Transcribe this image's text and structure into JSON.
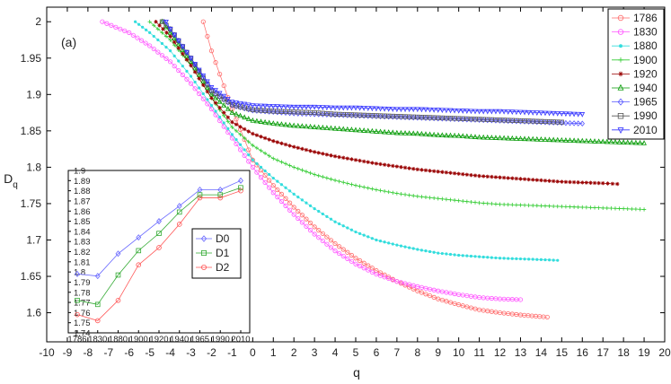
{
  "chart_data": [
    {
      "type": "line",
      "panel_label": "(a)",
      "xlabel": "q",
      "ylabel": "D",
      "ylabel_subscript": "q",
      "xlim": [
        -10,
        20
      ],
      "ylim": [
        1.56,
        2.02
      ],
      "x_ticks": [
        -10,
        -9,
        -8,
        -7,
        -6,
        -5,
        -4,
        -3,
        -2,
        -1,
        0,
        1,
        2,
        3,
        4,
        5,
        6,
        7,
        8,
        9,
        10,
        11,
        12,
        13,
        14,
        15,
        16,
        17,
        18,
        19,
        20
      ],
      "y_ticks": [
        1.6,
        1.65,
        1.7,
        1.75,
        1.8,
        1.85,
        1.9,
        1.95,
        2
      ],
      "grid": false,
      "legend_position": "top-right",
      "series": [
        {
          "name": "1786",
          "color": "#ff6a6a",
          "marker": "circle",
          "points": [
            [
              -2.4,
              2.0
            ],
            [
              -2,
              1.96
            ],
            [
              -1,
              1.88
            ],
            [
              0,
              1.81
            ],
            [
              1,
              1.775
            ],
            [
              2,
              1.745
            ],
            [
              3,
              1.718
            ],
            [
              4,
              1.695
            ],
            [
              5,
              1.675
            ],
            [
              6,
              1.658
            ],
            [
              7,
              1.643
            ],
            [
              8,
              1.63
            ],
            [
              9,
              1.619
            ],
            [
              10,
              1.611
            ],
            [
              11,
              1.604
            ],
            [
              12,
              1.6
            ],
            [
              13,
              1.597
            ],
            [
              14.3,
              1.594
            ]
          ]
        },
        {
          "name": "1830",
          "color": "#ff55ff",
          "marker": "circle",
          "points": [
            [
              -7.3,
              2.0
            ],
            [
              -6,
              1.985
            ],
            [
              -5,
              1.967
            ],
            [
              -4,
              1.945
            ],
            [
              -3,
              1.915
            ],
            [
              -2,
              1.88
            ],
            [
              -1,
              1.84
            ],
            [
              0,
              1.8
            ],
            [
              1,
              1.765
            ],
            [
              2,
              1.735
            ],
            [
              3,
              1.708
            ],
            [
              4,
              1.685
            ],
            [
              5,
              1.667
            ],
            [
              6,
              1.653
            ],
            [
              7,
              1.643
            ],
            [
              8,
              1.636
            ],
            [
              9,
              1.63
            ],
            [
              10,
              1.625
            ],
            [
              11,
              1.621
            ],
            [
              12,
              1.619
            ],
            [
              13,
              1.618
            ]
          ]
        },
        {
          "name": "1880",
          "color": "#33dddd",
          "marker": "point",
          "points": [
            [
              -5.7,
              2.0
            ],
            [
              -5,
              1.985
            ],
            [
              -4,
              1.96
            ],
            [
              -3,
              1.925
            ],
            [
              -2,
              1.885
            ],
            [
              -1,
              1.845
            ],
            [
              0,
              1.81
            ],
            [
              1,
              1.785
            ],
            [
              2,
              1.763
            ],
            [
              3,
              1.743
            ],
            [
              4,
              1.725
            ],
            [
              5,
              1.711
            ],
            [
              6,
              1.7
            ],
            [
              7,
              1.693
            ],
            [
              8,
              1.687
            ],
            [
              9,
              1.682
            ],
            [
              10,
              1.679
            ],
            [
              11,
              1.677
            ],
            [
              12,
              1.675
            ],
            [
              13,
              1.674
            ],
            [
              14,
              1.673
            ],
            [
              14.8,
              1.672
            ]
          ]
        },
        {
          "name": "1900",
          "color": "#33cc33",
          "marker": "plus",
          "points": [
            [
              -5,
              2.0
            ],
            [
              -4,
              1.975
            ],
            [
              -3,
              1.94
            ],
            [
              -2,
              1.895
            ],
            [
              -1,
              1.855
            ],
            [
              0,
              1.83
            ],
            [
              1,
              1.812
            ],
            [
              2,
              1.8
            ],
            [
              3,
              1.79
            ],
            [
              4,
              1.782
            ],
            [
              5,
              1.775
            ],
            [
              6,
              1.769
            ],
            [
              7,
              1.764
            ],
            [
              8,
              1.76
            ],
            [
              9,
              1.757
            ],
            [
              10,
              1.754
            ],
            [
              11,
              1.751
            ],
            [
              12,
              1.749
            ],
            [
              13,
              1.748
            ],
            [
              14,
              1.747
            ],
            [
              15,
              1.746
            ],
            [
              16,
              1.745
            ],
            [
              17,
              1.744
            ],
            [
              18,
              1.743
            ],
            [
              19,
              1.742
            ]
          ]
        },
        {
          "name": "1920",
          "color": "#990000",
          "marker": "star",
          "points": [
            [
              -4.7,
              2.0
            ],
            [
              -4,
              1.98
            ],
            [
              -3,
              1.94
            ],
            [
              -2,
              1.895
            ],
            [
              -1,
              1.862
            ],
            [
              0,
              1.846
            ],
            [
              1,
              1.836
            ],
            [
              2,
              1.828
            ],
            [
              3,
              1.821
            ],
            [
              4,
              1.815
            ],
            [
              5,
              1.81
            ],
            [
              6,
              1.805
            ],
            [
              7,
              1.801
            ],
            [
              8,
              1.797
            ],
            [
              9,
              1.794
            ],
            [
              10,
              1.791
            ],
            [
              11,
              1.788
            ],
            [
              12,
              1.786
            ],
            [
              13,
              1.784
            ],
            [
              14,
              1.782
            ],
            [
              15,
              1.78
            ],
            [
              16,
              1.779
            ],
            [
              17,
              1.778
            ],
            [
              17.7,
              1.777
            ]
          ]
        },
        {
          "name": "1940",
          "color": "#009900",
          "marker": "triangle-up",
          "points": [
            [
              -4.4,
              2.0
            ],
            [
              -4,
              1.985
            ],
            [
              -3,
              1.945
            ],
            [
              -2,
              1.9
            ],
            [
              -1,
              1.875
            ],
            [
              0,
              1.864
            ],
            [
              1,
              1.86
            ],
            [
              2,
              1.857
            ],
            [
              3,
              1.855
            ],
            [
              4,
              1.853
            ],
            [
              5,
              1.851
            ],
            [
              6,
              1.849
            ],
            [
              7,
              1.847
            ],
            [
              8,
              1.846
            ],
            [
              9,
              1.844
            ],
            [
              10,
              1.843
            ],
            [
              11,
              1.841
            ],
            [
              12,
              1.84
            ],
            [
              13,
              1.839
            ],
            [
              14,
              1.838
            ],
            [
              15,
              1.837
            ],
            [
              16,
              1.836
            ],
            [
              17,
              1.835
            ],
            [
              18,
              1.834
            ],
            [
              19,
              1.833
            ]
          ]
        },
        {
          "name": "1965",
          "color": "#5555ff",
          "marker": "diamond",
          "points": [
            [
              -4.3,
              2.0
            ],
            [
              -4,
              1.99
            ],
            [
              -3,
              1.95
            ],
            [
              -2,
              1.905
            ],
            [
              -1,
              1.885
            ],
            [
              0,
              1.878
            ],
            [
              1,
              1.876
            ],
            [
              2,
              1.874
            ],
            [
              3,
              1.873
            ],
            [
              4,
              1.872
            ],
            [
              5,
              1.871
            ],
            [
              6,
              1.87
            ],
            [
              7,
              1.869
            ],
            [
              8,
              1.868
            ],
            [
              9,
              1.867
            ],
            [
              10,
              1.866
            ],
            [
              11,
              1.865
            ],
            [
              12,
              1.864
            ],
            [
              13,
              1.863
            ],
            [
              14,
              1.862
            ],
            [
              15,
              1.861
            ],
            [
              16,
              1.86
            ]
          ]
        },
        {
          "name": "1990",
          "color": "#555555",
          "marker": "square",
          "points": [
            [
              -4.4,
              2.0
            ],
            [
              -4,
              1.99
            ],
            [
              -3,
              1.95
            ],
            [
              -2,
              1.905
            ],
            [
              -1,
              1.886
            ],
            [
              0,
              1.879
            ],
            [
              1,
              1.877
            ],
            [
              2,
              1.876
            ],
            [
              3,
              1.875
            ],
            [
              4,
              1.873
            ],
            [
              5,
              1.872
            ],
            [
              6,
              1.871
            ],
            [
              7,
              1.87
            ],
            [
              8,
              1.869
            ],
            [
              9,
              1.868
            ],
            [
              10,
              1.867
            ],
            [
              11,
              1.866
            ],
            [
              12,
              1.865
            ],
            [
              13,
              1.864
            ],
            [
              14,
              1.863
            ],
            [
              15,
              1.862
            ]
          ]
        },
        {
          "name": "2010",
          "color": "#3333ff",
          "marker": "triangle-down",
          "points": [
            [
              -4.2,
              2.0
            ],
            [
              -4,
              1.99
            ],
            [
              -3,
              1.95
            ],
            [
              -2,
              1.91
            ],
            [
              -1,
              1.89
            ],
            [
              0,
              1.885
            ],
            [
              1,
              1.884
            ],
            [
              2,
              1.883
            ],
            [
              3,
              1.883
            ],
            [
              4,
              1.882
            ],
            [
              5,
              1.882
            ],
            [
              6,
              1.881
            ],
            [
              7,
              1.88
            ],
            [
              8,
              1.88
            ],
            [
              9,
              1.879
            ],
            [
              10,
              1.878
            ],
            [
              11,
              1.877
            ],
            [
              12,
              1.877
            ],
            [
              13,
              1.876
            ],
            [
              14,
              1.875
            ],
            [
              15,
              1.874
            ],
            [
              16,
              1.873
            ]
          ]
        }
      ]
    },
    {
      "type": "line",
      "role": "inset",
      "categories": [
        "1786",
        "1830",
        "1880",
        "1900",
        "1920",
        "1940",
        "1965",
        "1990",
        "2010"
      ],
      "ylim": [
        1.74,
        1.9
      ],
      "y_ticks": [
        1.74,
        1.75,
        1.76,
        1.77,
        1.78,
        1.79,
        1.8,
        1.81,
        1.82,
        1.83,
        1.84,
        1.85,
        1.86,
        1.87,
        1.88,
        1.89,
        1.9
      ],
      "grid": false,
      "legend_position": "center-right",
      "series": [
        {
          "name": "D0",
          "color": "#6666ff",
          "marker": "diamond",
          "values": [
            1.798,
            1.796,
            1.818,
            1.834,
            1.85,
            1.865,
            1.881,
            1.881,
            1.89
          ]
        },
        {
          "name": "D1",
          "color": "#33aa33",
          "marker": "square",
          "values": [
            1.772,
            1.768,
            1.797,
            1.821,
            1.838,
            1.859,
            1.876,
            1.876,
            1.883
          ]
        },
        {
          "name": "D2",
          "color": "#ff5555",
          "marker": "circle",
          "values": [
            1.758,
            1.752,
            1.772,
            1.807,
            1.824,
            1.847,
            1.873,
            1.873,
            1.88
          ]
        }
      ]
    }
  ]
}
